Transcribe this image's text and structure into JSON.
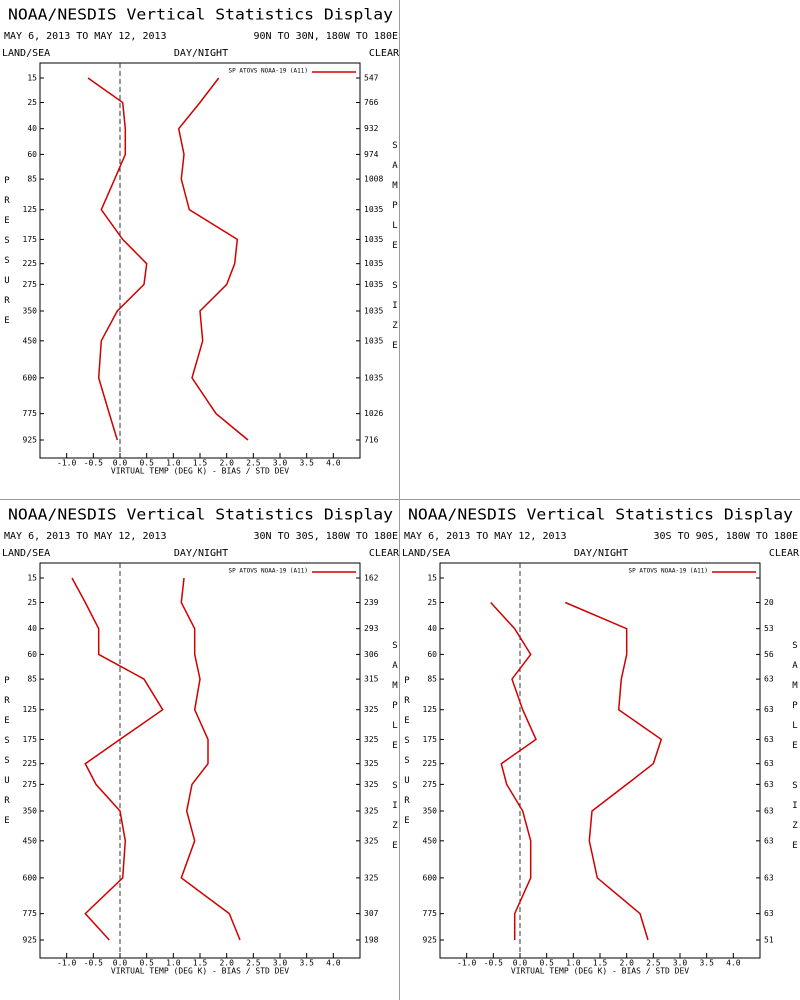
{
  "chart_data": [
    {
      "type": "line",
      "title": "NOAA/NESDIS Vertical Statistics Display",
      "subtitle": "MAY 6, 2013 TO MAY 12, 2013",
      "region": "90N TO 30N, 180W TO 180E",
      "land_sea": "LAND/SEA",
      "day_night": "DAY/NIGHT",
      "clear": "CLEAR",
      "legend": "SP ATOVS NOAA-19 (A11)",
      "ylabel": "PRESSURE",
      "y2label": "SAMPLE SIZE",
      "xlabel": "VIRTUAL TEMP (DEG K) - BIAS / STD DEV",
      "y": [
        15,
        25,
        40,
        60,
        85,
        125,
        175,
        225,
        275,
        350,
        450,
        600,
        775,
        925
      ],
      "sample_size": [
        547,
        766,
        932,
        974,
        1008,
        1035,
        1035,
        1035,
        1035,
        1035,
        1035,
        1035,
        1026,
        716
      ],
      "series": [
        {
          "color": "#d00000",
          "values": [
            -0.6,
            0.05,
            0.1,
            0.1,
            -0.1,
            -0.35,
            0.05,
            0.5,
            0.45,
            -0.05,
            -0.35,
            -0.4,
            -0.2,
            -0.05
          ]
        },
        {
          "color": "#d00000",
          "values": [
            1.85,
            1.5,
            1.1,
            1.2,
            1.15,
            1.3,
            2.2,
            2.15,
            2.0,
            1.5,
            1.55,
            1.35,
            1.8,
            2.4
          ]
        }
      ],
      "xlim": [
        -1.5,
        4.5
      ],
      "xticks": [
        {
          "value": -1,
          "label": "-1.0"
        },
        {
          "value": -0.5,
          "label": "-0.5"
        },
        {
          "value": 0,
          "label": "0.0"
        },
        {
          "value": 0.5,
          "label": "0.5"
        },
        {
          "value": 1,
          "label": "1.0"
        },
        {
          "value": 1.5,
          "label": "1.5"
        },
        {
          "value": 2,
          "label": "2.0"
        },
        {
          "value": 2.5,
          "label": "2.5"
        },
        {
          "value": 3,
          "label": "3.0"
        },
        {
          "value": 3.5,
          "label": "3.5"
        },
        {
          "value": 4,
          "label": "4.0"
        }
      ]
    },
    {
      "type": "line",
      "title": "NOAA/NESDIS Vertical Statistics Display",
      "subtitle": "MAY 6, 2013 TO MAY 12, 2013",
      "region": "30N TO 30S, 180W TO 180E",
      "land_sea": "LAND/SEA",
      "day_night": "DAY/NIGHT",
      "clear": "CLEAR",
      "legend": "SP ATOVS NOAA-19 (A11)",
      "ylabel": "PRESSURE",
      "y2label": "SAMPLE SIZE",
      "xlabel": "VIRTUAL TEMP (DEG K) - BIAS / STD DEV",
      "y": [
        15,
        25,
        40,
        60,
        85,
        125,
        175,
        225,
        275,
        350,
        450,
        600,
        775,
        925
      ],
      "sample_size": [
        162,
        239,
        293,
        306,
        315,
        325,
        325,
        325,
        325,
        325,
        325,
        325,
        307,
        198
      ],
      "series": [
        {
          "color": "#d00000",
          "values": [
            -0.9,
            -0.65,
            -0.4,
            -0.4,
            0.45,
            0.8,
            0.0,
            -0.65,
            -0.45,
            0.0,
            0.1,
            0.05,
            -0.65,
            -0.2
          ]
        },
        {
          "color": "#d00000",
          "values": [
            1.2,
            1.15,
            1.4,
            1.4,
            1.5,
            1.4,
            1.65,
            1.65,
            1.35,
            1.25,
            1.4,
            1.15,
            2.05,
            2.25
          ]
        }
      ],
      "xlim": [
        -1.5,
        4.5
      ],
      "xticks": [
        {
          "value": -1,
          "label": "-1.0"
        },
        {
          "value": -0.5,
          "label": "-0.5"
        },
        {
          "value": 0,
          "label": "0.0"
        },
        {
          "value": 0.5,
          "label": "0.5"
        },
        {
          "value": 1,
          "label": "1.0"
        },
        {
          "value": 1.5,
          "label": "1.5"
        },
        {
          "value": 2,
          "label": "2.0"
        },
        {
          "value": 2.5,
          "label": "2.5"
        },
        {
          "value": 3,
          "label": "3.0"
        },
        {
          "value": 3.5,
          "label": "3.5"
        },
        {
          "value": 4,
          "label": "4.0"
        }
      ]
    },
    {
      "type": "line",
      "title": "NOAA/NESDIS Vertical Statistics Display",
      "subtitle": "MAY 6, 2013 TO MAY 12, 2013",
      "region": "30S TO 90S, 180W TO 180E",
      "land_sea": "LAND/SEA",
      "day_night": "DAY/NIGHT",
      "clear": "CLEAR",
      "legend": "SP ATOVS NOAA-19 (A11)",
      "ylabel": "PRESSURE",
      "y2label": "SAMPLE SIZE",
      "xlabel": "VIRTUAL TEMP (DEG K) - BIAS / STD DEV",
      "y": [
        15,
        25,
        40,
        60,
        85,
        125,
        175,
        225,
        275,
        350,
        450,
        600,
        775,
        925
      ],
      "sample_size": [
        null,
        20,
        53,
        56,
        63,
        63,
        63,
        63,
        63,
        63,
        63,
        63,
        63,
        51
      ],
      "series": [
        {
          "color": "#d00000",
          "values": [
            null,
            -0.55,
            -0.1,
            0.2,
            -0.15,
            0.05,
            0.3,
            -0.35,
            -0.25,
            0.05,
            0.2,
            0.2,
            -0.1,
            -0.1
          ]
        },
        {
          "color": "#d00000",
          "values": [
            null,
            0.85,
            2.0,
            2.0,
            1.9,
            1.85,
            2.65,
            2.5,
            2.0,
            1.35,
            1.3,
            1.45,
            2.25,
            2.4
          ]
        }
      ],
      "xlim": [
        -1.5,
        4.5
      ],
      "xticks": [
        {
          "value": -1,
          "label": "-1.0"
        },
        {
          "value": -0.5,
          "label": "-0.5"
        },
        {
          "value": 0,
          "label": "0.0"
        },
        {
          "value": 0.5,
          "label": "0.5"
        },
        {
          "value": 1,
          "label": "1.0"
        },
        {
          "value": 1.5,
          "label": "1.5"
        },
        {
          "value": 2,
          "label": "2.0"
        },
        {
          "value": 2.5,
          "label": "2.5"
        },
        {
          "value": 3,
          "label": "3.0"
        },
        {
          "value": 3.5,
          "label": "3.5"
        },
        {
          "value": 4,
          "label": "4.0"
        }
      ]
    }
  ]
}
